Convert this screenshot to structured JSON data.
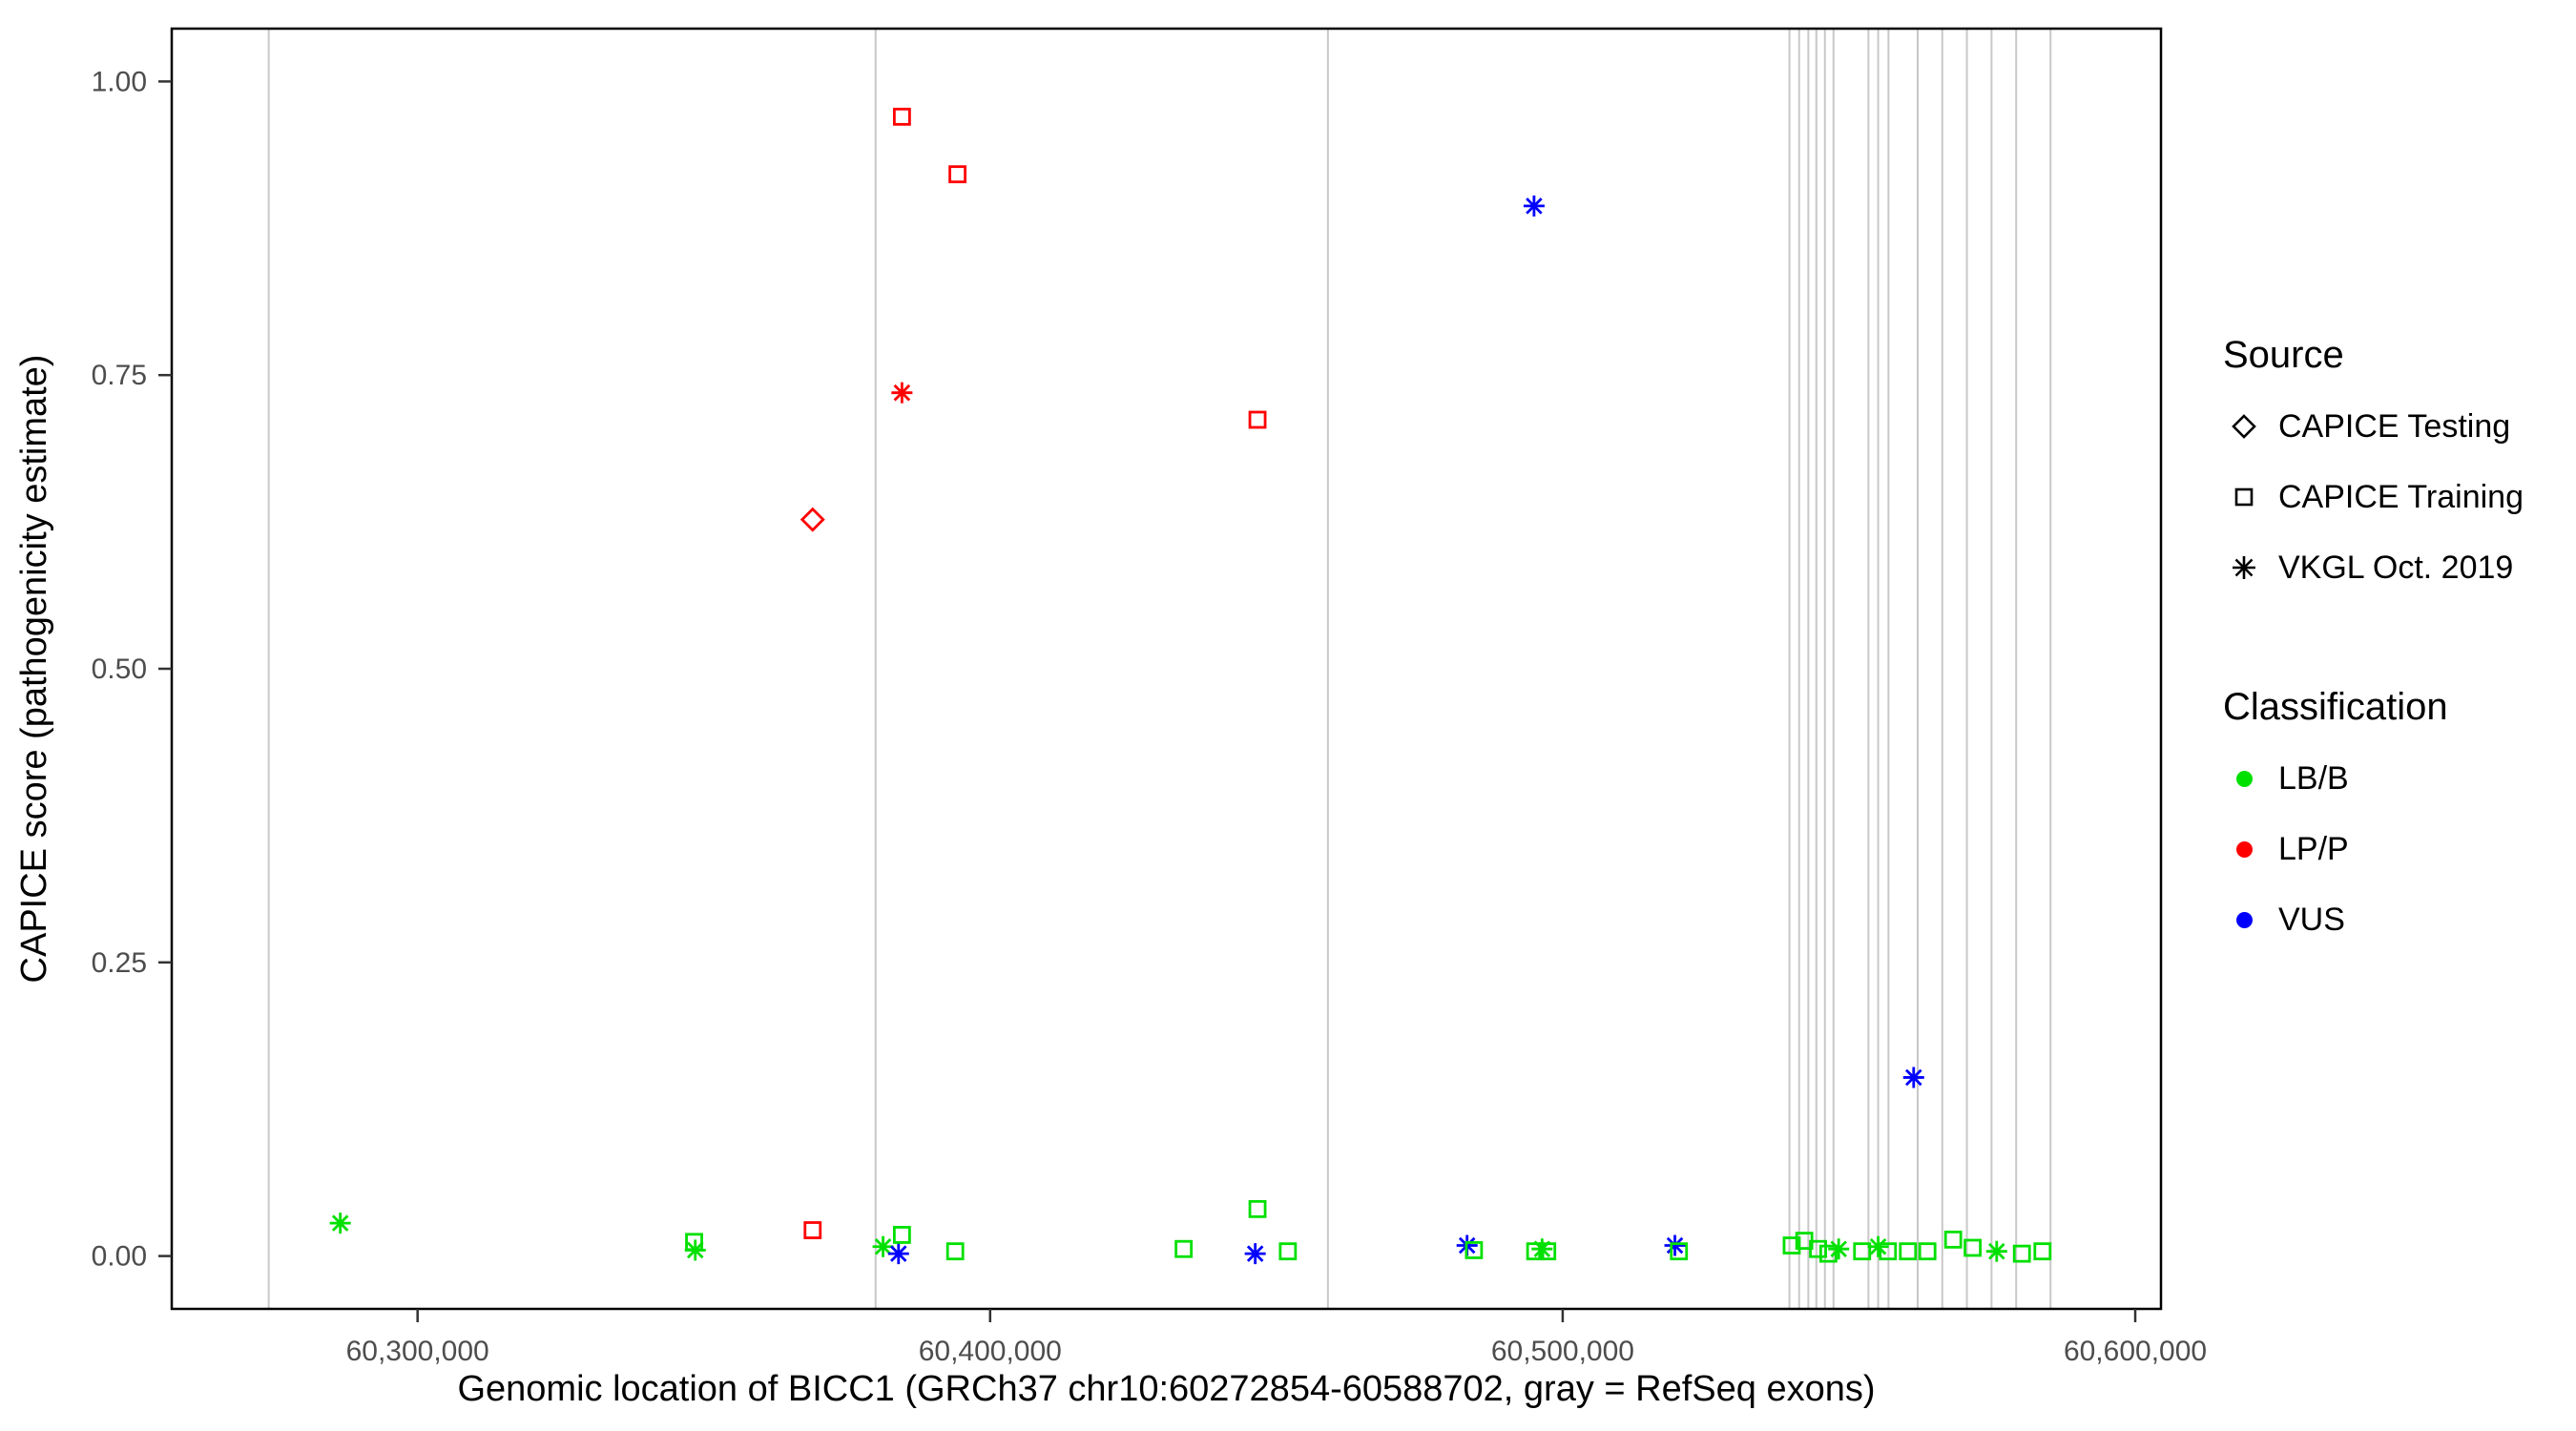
{
  "figure": {
    "background": "#FFFFFF",
    "panel_border_color": "#000000"
  },
  "legend_source": {
    "title": "Source",
    "items": [
      {
        "label": "CAPICE Testing",
        "shape": "diamond"
      },
      {
        "label": "CAPICE Training",
        "shape": "square"
      },
      {
        "label": "VKGL Oct. 2019",
        "shape": "asterisk"
      }
    ]
  },
  "legend_classification": {
    "title": "Classification",
    "items": [
      {
        "label": "LB/B",
        "color": "#00E000"
      },
      {
        "label": "LP/P",
        "color": "#FF0000"
      },
      {
        "label": "VUS",
        "color": "#0000FF"
      }
    ]
  },
  "chart_data": {
    "type": "scatter",
    "title": "",
    "xlabel": "Genomic location of BICC1 (GRCh37 chr10:60272854-60588702, gray = RefSeq exons)",
    "ylabel": "CAPICE score (pathogenicity estimate)",
    "xlim": [
      60257062,
      60604494
    ],
    "ylim": [
      -0.045,
      1.045
    ],
    "grid": false,
    "legend_position": "right",
    "x_ticks": [
      {
        "value": 60300000,
        "label": "60,300,000"
      },
      {
        "value": 60400000,
        "label": "60,400,000"
      },
      {
        "value": 60500000,
        "label": "60,500,000"
      },
      {
        "value": 60600000,
        "label": "60,600,000"
      }
    ],
    "y_ticks": [
      {
        "value": 0.0,
        "label": "0.00"
      },
      {
        "value": 0.25,
        "label": "0.25"
      },
      {
        "value": 0.5,
        "label": "0.50"
      },
      {
        "value": 0.75,
        "label": "0.75"
      },
      {
        "value": 1.0,
        "label": "1.00"
      }
    ],
    "exon_note": "gray vertical lines = RefSeq exons",
    "exon_color": "#C8C8C8",
    "exons_x": [
      60274000,
      60380000,
      60459000,
      60539600,
      60541300,
      60542900,
      60544300,
      60545800,
      60547300,
      60553400,
      60555100,
      60556900,
      60562000,
      60566300,
      60570600,
      60574900,
      60579200,
      60585200
    ],
    "classification_colors": {
      "LB/B": "#00E000",
      "LP/P": "#FF0000",
      "VUS": "#0000FF"
    },
    "source_shapes": {
      "CAPICE Testing": "diamond",
      "CAPICE Training": "square",
      "VKGL Oct. 2019": "asterisk"
    },
    "points": [
      {
        "x": 60286500,
        "y": 0.028,
        "classification": "LB/B",
        "source": "VKGL Oct. 2019"
      },
      {
        "x": 60348300,
        "y": 0.012,
        "classification": "LB/B",
        "source": "CAPICE Training"
      },
      {
        "x": 60348500,
        "y": 0.005,
        "classification": "LB/B",
        "source": "VKGL Oct. 2019"
      },
      {
        "x": 60369000,
        "y": 0.022,
        "classification": "LP/P",
        "source": "CAPICE Training"
      },
      {
        "x": 60369000,
        "y": 0.627,
        "classification": "LP/P",
        "source": "CAPICE Testing"
      },
      {
        "x": 60381300,
        "y": 0.008,
        "classification": "LB/B",
        "source": "VKGL Oct. 2019"
      },
      {
        "x": 60384000,
        "y": 0.002,
        "classification": "VUS",
        "source": "VKGL Oct. 2019"
      },
      {
        "x": 60384600,
        "y": 0.018,
        "classification": "LB/B",
        "source": "CAPICE Training"
      },
      {
        "x": 60384600,
        "y": 0.735,
        "classification": "LP/P",
        "source": "VKGL Oct. 2019"
      },
      {
        "x": 60384600,
        "y": 0.97,
        "classification": "LP/P",
        "source": "CAPICE Training"
      },
      {
        "x": 60393900,
        "y": 0.004,
        "classification": "LB/B",
        "source": "CAPICE Training"
      },
      {
        "x": 60394300,
        "y": 0.921,
        "classification": "LP/P",
        "source": "CAPICE Training"
      },
      {
        "x": 60433800,
        "y": 0.006,
        "classification": "LB/B",
        "source": "CAPICE Training"
      },
      {
        "x": 60446700,
        "y": 0.712,
        "classification": "LP/P",
        "source": "CAPICE Training"
      },
      {
        "x": 60446700,
        "y": 0.04,
        "classification": "LB/B",
        "source": "CAPICE Training"
      },
      {
        "x": 60446300,
        "y": 0.002,
        "classification": "VUS",
        "source": "VKGL Oct. 2019"
      },
      {
        "x": 60452000,
        "y": 0.004,
        "classification": "LB/B",
        "source": "CAPICE Training"
      },
      {
        "x": 60483300,
        "y": 0.009,
        "classification": "VUS",
        "source": "VKGL Oct. 2019"
      },
      {
        "x": 60484500,
        "y": 0.005,
        "classification": "LB/B",
        "source": "CAPICE Training"
      },
      {
        "x": 60495000,
        "y": 0.894,
        "classification": "VUS",
        "source": "VKGL Oct. 2019"
      },
      {
        "x": 60495200,
        "y": 0.004,
        "classification": "LB/B",
        "source": "CAPICE Training"
      },
      {
        "x": 60496400,
        "y": 0.006,
        "classification": "LB/B",
        "source": "VKGL Oct. 2019"
      },
      {
        "x": 60497300,
        "y": 0.004,
        "classification": "LB/B",
        "source": "CAPICE Training"
      },
      {
        "x": 60519600,
        "y": 0.009,
        "classification": "VUS",
        "source": "VKGL Oct. 2019"
      },
      {
        "x": 60520300,
        "y": 0.004,
        "classification": "LB/B",
        "source": "CAPICE Training"
      },
      {
        "x": 60540000,
        "y": 0.009,
        "classification": "LB/B",
        "source": "CAPICE Training"
      },
      {
        "x": 60542200,
        "y": 0.013,
        "classification": "LB/B",
        "source": "CAPICE Training"
      },
      {
        "x": 60544600,
        "y": 0.006,
        "classification": "LB/B",
        "source": "CAPICE Training"
      },
      {
        "x": 60546400,
        "y": 0.002,
        "classification": "LB/B",
        "source": "CAPICE Training"
      },
      {
        "x": 60548200,
        "y": 0.006,
        "classification": "LB/B",
        "source": "VKGL Oct. 2019"
      },
      {
        "x": 60552300,
        "y": 0.004,
        "classification": "LB/B",
        "source": "CAPICE Training"
      },
      {
        "x": 60555100,
        "y": 0.008,
        "classification": "LB/B",
        "source": "VKGL Oct. 2019"
      },
      {
        "x": 60556800,
        "y": 0.004,
        "classification": "LB/B",
        "source": "CAPICE Training"
      },
      {
        "x": 60560300,
        "y": 0.004,
        "classification": "LB/B",
        "source": "CAPICE Training"
      },
      {
        "x": 60561300,
        "y": 0.152,
        "classification": "VUS",
        "source": "VKGL Oct. 2019"
      },
      {
        "x": 60563700,
        "y": 0.004,
        "classification": "LB/B",
        "source": "CAPICE Training"
      },
      {
        "x": 60568200,
        "y": 0.014,
        "classification": "LB/B",
        "source": "CAPICE Training"
      },
      {
        "x": 60571600,
        "y": 0.007,
        "classification": "LB/B",
        "source": "CAPICE Training"
      },
      {
        "x": 60575800,
        "y": 0.004,
        "classification": "LB/B",
        "source": "VKGL Oct. 2019"
      },
      {
        "x": 60580200,
        "y": 0.002,
        "classification": "LB/B",
        "source": "CAPICE Training"
      },
      {
        "x": 60583800,
        "y": 0.004,
        "classification": "LB/B",
        "source": "CAPICE Training"
      }
    ]
  }
}
